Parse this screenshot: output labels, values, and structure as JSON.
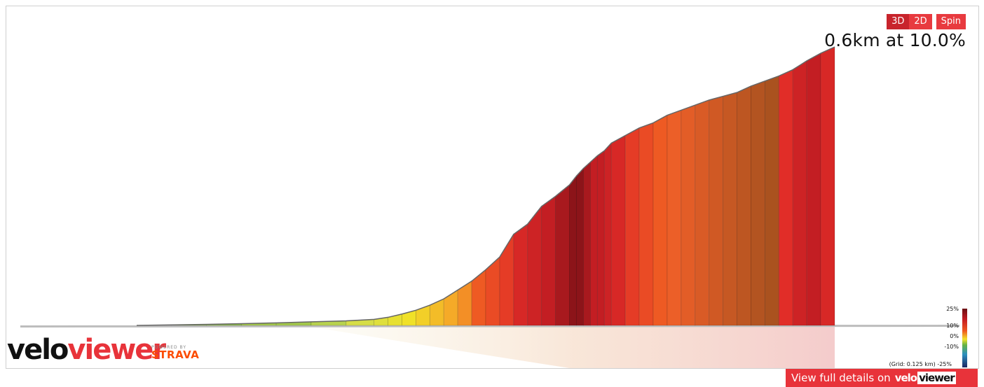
{
  "view_buttons": {
    "btn_3d": "3D",
    "btn_2d": "2D",
    "btn_spin": "Spin",
    "active": "3D"
  },
  "segment": {
    "readout": "0.6km at 10.0%"
  },
  "legend": {
    "labels": [
      "25%",
      "10%",
      "0%",
      "-10%",
      "-25%"
    ],
    "grid_note": "(Grid: 0.125 km)"
  },
  "branding": {
    "logo_velo": "velo",
    "logo_viewer": "viewer",
    "powered_by": "POWERED BY",
    "strava": "STRAVA"
  },
  "details_link": {
    "text": "View full details on",
    "brand_velo": "velo",
    "brand_viewer": "viewer"
  },
  "colors": {
    "accent": "#e8333a",
    "strava": "#fc4c02"
  },
  "chart_data": {
    "type": "area",
    "description_units": "x = distance fraction along segment, y = relative elevation fraction, grade in %",
    "x": [
      0.0,
      0.05,
      0.1,
      0.15,
      0.2,
      0.25,
      0.3,
      0.34,
      0.36,
      0.38,
      0.4,
      0.42,
      0.44,
      0.46,
      0.48,
      0.5,
      0.52,
      0.54,
      0.56,
      0.58,
      0.6,
      0.62,
      0.63,
      0.64,
      0.65,
      0.66,
      0.67,
      0.68,
      0.7,
      0.72,
      0.74,
      0.76,
      0.78,
      0.8,
      0.82,
      0.84,
      0.86,
      0.88,
      0.9,
      0.92,
      0.94,
      0.96,
      0.98,
      1.0
    ],
    "y": [
      0.0,
      0.002,
      0.004,
      0.007,
      0.01,
      0.014,
      0.018,
      0.024,
      0.032,
      0.045,
      0.06,
      0.08,
      0.105,
      0.14,
      0.175,
      0.22,
      0.27,
      0.36,
      0.4,
      0.47,
      0.51,
      0.555,
      0.59,
      0.62,
      0.645,
      0.67,
      0.69,
      0.72,
      0.75,
      0.78,
      0.8,
      0.83,
      0.85,
      0.87,
      0.89,
      0.905,
      0.92,
      0.945,
      0.965,
      0.985,
      1.01,
      1.045,
      1.075,
      1.1
    ],
    "grades": [
      1,
      1,
      1,
      2,
      2,
      3,
      5,
      6,
      7,
      8,
      9,
      10,
      11,
      12,
      14,
      15,
      16,
      18,
      19,
      20,
      21,
      22,
      22,
      21,
      20,
      20,
      19,
      18,
      16,
      15,
      14,
      13,
      12,
      12,
      11,
      11,
      12,
      13,
      15,
      17,
      19,
      20,
      18,
      16
    ],
    "length_km": 0.6,
    "avg_grade_pct": 10.0
  }
}
